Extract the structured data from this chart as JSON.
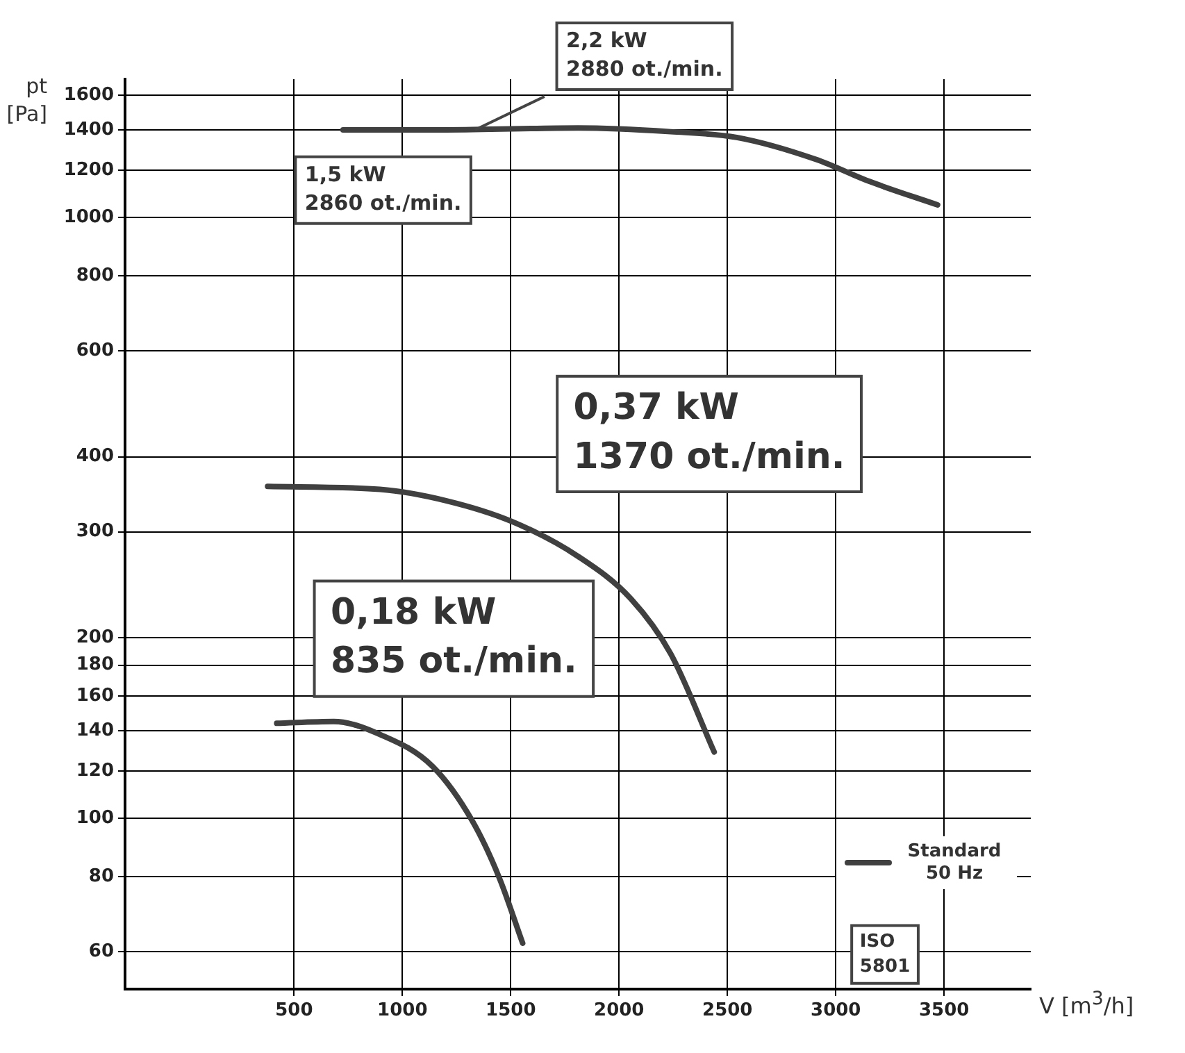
{
  "chart_data": {
    "type": "line",
    "xlabel": "V [m$^{3}$/h]",
    "ylabel": "pt [Pa]",
    "log": "y",
    "grid": true,
    "legend": "bottom right",
    "marker": "none",
    "line_style": "solid",
    "xlim": [
      -280,
      3900
    ],
    "xticks": [
      500,
      1000,
      1500,
      2000,
      2500,
      3000,
      3500
    ],
    "ylim": [
      52,
      1700
    ],
    "yticks": [
      60,
      80,
      100,
      120,
      140,
      160,
      180,
      200,
      300,
      400,
      600,
      800,
      1000,
      1200,
      1400,
      1600
    ],
    "series": [
      {
        "name": "Standard 50 Hz",
        "color": "#404040",
        "x": [
          726,
          1201,
          1811,
          2238,
          2543,
          2909,
          3152,
          3470
        ],
        "values": [
          1400,
          1400,
          1410,
          1390,
          1360,
          1250,
          1150,
          1050
        ]
      },
      {
        "color": "#404040",
        "x": [
          378,
          896,
          1201,
          1506,
          1811,
          2055,
          2238,
          2439
        ],
        "values": [
          357,
          353,
          338,
          312,
          273,
          232,
          188,
          129
        ]
      },
      {
        "color": "#404040",
        "x": [
          420,
          683,
          896,
          1140,
          1323,
          1445,
          1555
        ],
        "values": [
          144,
          145,
          138,
          122,
          99,
          80,
          62
        ]
      }
    ],
    "annotations": [
      {
        "text": "2,2 kW\n2880 ot./min.",
        "x": 1335,
        "y": 1400
      },
      "1,5 kW\n2860 ot./min.",
      "0,37 kW\n1370 ot./min.",
      "0,18 kW\n835 ot./min.",
      "ISO\n5801"
    ]
  }
}
